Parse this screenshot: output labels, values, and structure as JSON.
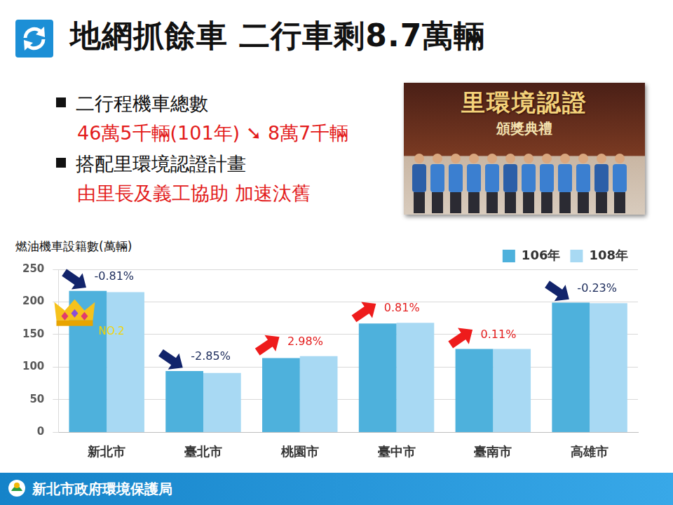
{
  "header": {
    "title": "地網抓餘車 二行車剩8.7萬輛"
  },
  "bullets": [
    {
      "text": "二行程機車總數",
      "detail": "46萬5千輛(101年) ➘ 8萬7千輛"
    },
    {
      "text": "搭配里環境認證計畫",
      "detail": "由里長及義工協助 加速汰舊"
    }
  ],
  "photo": {
    "banner": "里環境認證",
    "subtitle": "頒獎典禮"
  },
  "footer": {
    "text": "新北市政府環境保護局"
  },
  "chart_data": {
    "type": "bar",
    "y_label": "燃油機車設籍數(萬輛)",
    "categories": [
      "新北市",
      "臺北市",
      "桃園市",
      "臺中市",
      "臺南市",
      "高雄市"
    ],
    "series": [
      {
        "name": "106年",
        "color": "#4eb1dc",
        "values": [
          217,
          94,
          114,
          167,
          128,
          199
        ]
      },
      {
        "name": "108年",
        "color": "#a8d9f3",
        "values": [
          215,
          91,
          117,
          168,
          128,
          198
        ]
      }
    ],
    "ylim": [
      0,
      250
    ],
    "yticks": [
      0,
      50,
      100,
      150,
      200,
      250
    ],
    "grid": true,
    "legend": "upper right",
    "annotations": [
      {
        "category": "新北市",
        "value": -0.81,
        "label": "-0.81%"
      },
      {
        "category": "臺北市",
        "value": -2.85,
        "label": "-2.85%"
      },
      {
        "category": "桃園市",
        "value": 2.98,
        "label": "2.98%"
      },
      {
        "category": "臺中市",
        "value": 0.81,
        "label": "0.81%"
      },
      {
        "category": "臺南市",
        "value": 0.11,
        "label": "0.11%"
      },
      {
        "category": "高雄市",
        "value": -0.23,
        "label": "-0.23%"
      }
    ],
    "badge": {
      "category": "新北市",
      "text": "NO.2"
    }
  }
}
